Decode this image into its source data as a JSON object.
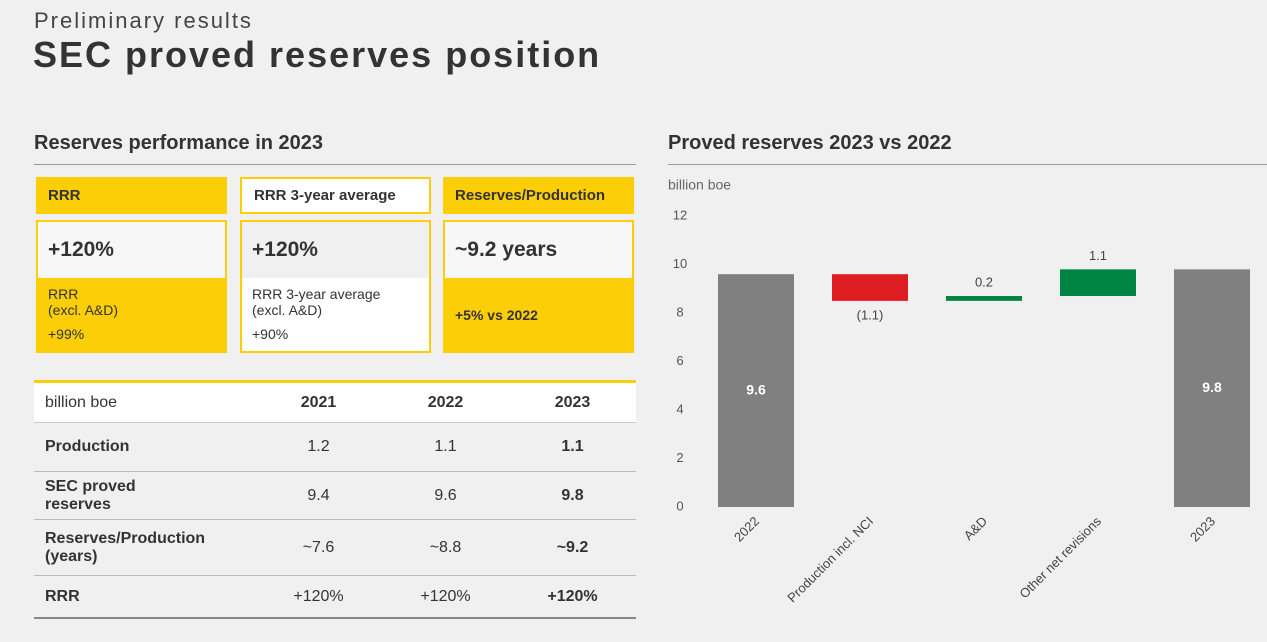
{
  "header": {
    "kicker": "Preliminary results",
    "title": "SEC proved reserves position"
  },
  "performance": {
    "title": "Reserves performance in 2023",
    "cards": [
      {
        "header": "RRR",
        "value": "+120%",
        "sub_lines": [
          "RRR",
          "(excl. A&D)"
        ],
        "sub_value": "+99%"
      },
      {
        "header": "RRR 3-year average",
        "value": "+120%",
        "sub_lines": [
          "RRR 3-year average",
          "(excl. A&D)"
        ],
        "sub_value": "+90%"
      },
      {
        "header": "Reserves/Production",
        "value": "~9.2 years",
        "sub_lines": [
          "+5% vs 2022"
        ]
      }
    ]
  },
  "table": {
    "columns": [
      "billion boe",
      "2021",
      "2022",
      "2023"
    ],
    "rows": [
      [
        "Production",
        "1.2",
        "1.1",
        "1.1"
      ],
      [
        "SEC proved reserves",
        "9.4",
        "9.6",
        "9.8"
      ],
      [
        "Reserves/Production (years)",
        "~7.6",
        "~8.8",
        "~9.2"
      ],
      [
        "RRR",
        "+120%",
        "+120%",
        "+120%"
      ]
    ]
  },
  "chart_data": {
    "type": "waterfall",
    "title": "Proved reserves 2023 vs 2022",
    "y_label": "billion boe",
    "categories": [
      "2022",
      "Production incl. NCI",
      "A&D",
      "Other net revisions",
      "2023"
    ],
    "values": [
      9.6,
      -1.1,
      0.2,
      1.1,
      9.8
    ],
    "value_labels": [
      "9.6",
      "(1.1)",
      "0.2",
      "1.1",
      "9.8"
    ],
    "colors": [
      "#808080",
      "#dd1d21",
      "#008443",
      "#008443",
      "#808080"
    ],
    "ylim": [
      0,
      12
    ],
    "yticks": [
      0,
      2,
      4,
      6,
      8,
      10,
      12
    ],
    "grid": false
  }
}
